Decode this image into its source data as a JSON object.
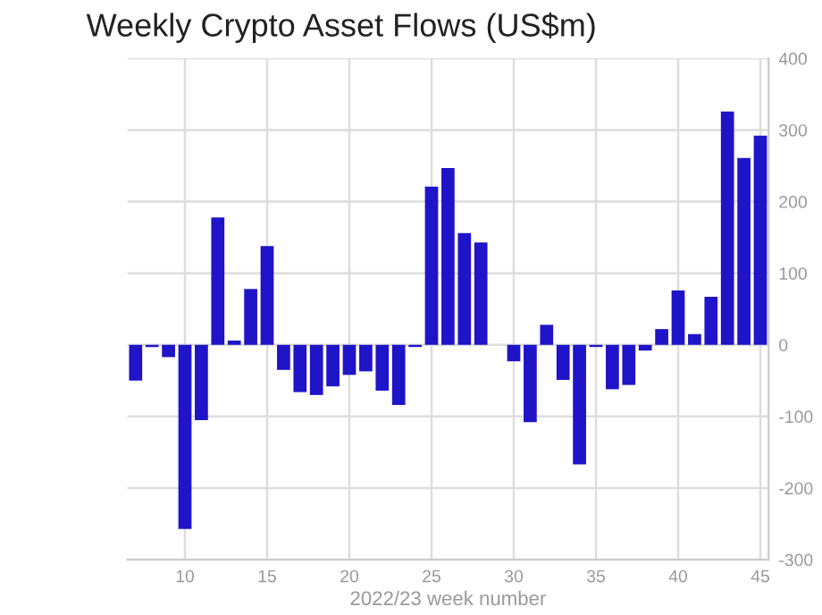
{
  "chart_data": {
    "type": "bar",
    "title": "Weekly Crypto Asset Flows (US$m)",
    "xlabel": "2022/23 week number",
    "x": [
      7,
      8,
      9,
      10,
      11,
      12,
      13,
      14,
      15,
      16,
      17,
      18,
      19,
      20,
      21,
      22,
      23,
      24,
      25,
      26,
      27,
      28,
      29,
      30,
      31,
      32,
      33,
      34,
      35,
      36,
      37,
      38,
      39,
      40,
      41,
      42,
      43,
      44,
      45
    ],
    "values": [
      -50,
      -3,
      -17,
      -257,
      -105,
      178,
      6,
      78,
      138,
      -35,
      -66,
      -70,
      -58,
      -42,
      -37,
      -64,
      -84,
      -3,
      221,
      247,
      156,
      143,
      null,
      -23,
      -108,
      28,
      -49,
      -167,
      -3,
      -62,
      -56,
      -8,
      22,
      76,
      15,
      67,
      326,
      261,
      292
    ],
    "color": "#1f14c8",
    "xlim": [
      6.5,
      45.5
    ],
    "xticks": [
      10,
      15,
      20,
      25,
      30,
      35,
      40,
      45
    ],
    "ylim": [
      -300,
      400
    ],
    "yticks": [
      -300,
      -200,
      -100,
      0,
      100,
      200,
      300,
      400
    ],
    "grid": true
  }
}
